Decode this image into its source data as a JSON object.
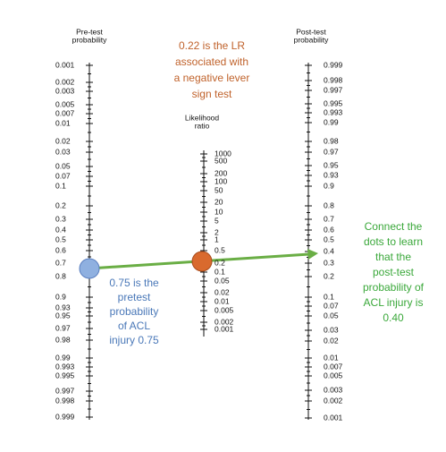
{
  "headers": {
    "pretest": [
      "Pre-test",
      "probability"
    ],
    "posttest": [
      "Post-test",
      "probability"
    ],
    "lr": [
      "Likelihood",
      "ratio"
    ]
  },
  "pretest_ticks": [
    "0.001",
    "0.002",
    "0.003",
    "0.005",
    "0.007",
    "0.01",
    "0.02",
    "0.03",
    "0.05",
    "0.07",
    "0.1",
    "0.2",
    "0.3",
    "0.4",
    "0.5",
    "0.6",
    "0.7",
    "0.8",
    "0.9",
    "0.93",
    "0.95",
    "0.97",
    "0.98",
    "0.99",
    "0.993",
    "0.995",
    "0.997",
    "0.998",
    "0.999"
  ],
  "lr_ticks": [
    "1000",
    "500",
    "200",
    "100",
    "50",
    "20",
    "10",
    "5",
    "2",
    "1",
    "0.5",
    "0.2",
    "0.1",
    "0.05",
    "0.02",
    "0.01",
    "0.005",
    "0.002",
    "0.001"
  ],
  "posttest_ticks": [
    "0.999",
    "0.998",
    "0.997",
    "0.995",
    "0.993",
    "0.99",
    "0.98",
    "0.97",
    "0.95",
    "0.93",
    "0.9",
    "0.8",
    "0.7",
    "0.6",
    "0.5",
    "0.4",
    "0.3",
    "0.2",
    "0.1",
    "0.07",
    "0.05",
    "0.03",
    "0.02",
    "0.01",
    "0.007",
    "0.005",
    "0.003",
    "0.002",
    "0.001"
  ],
  "annotations": {
    "lr_note": [
      "0.22  is the LR",
      "associated with",
      "a negative lever",
      "sign test"
    ],
    "pretest_note": [
      "0.75 is the",
      "pretest",
      "probability",
      "of ACL",
      "injury 0.75"
    ],
    "posttest_note": [
      "Connect the",
      "dots to learn",
      "that the",
      "post-test",
      "probability of",
      "ACL injury is",
      "0.40"
    ]
  }
}
